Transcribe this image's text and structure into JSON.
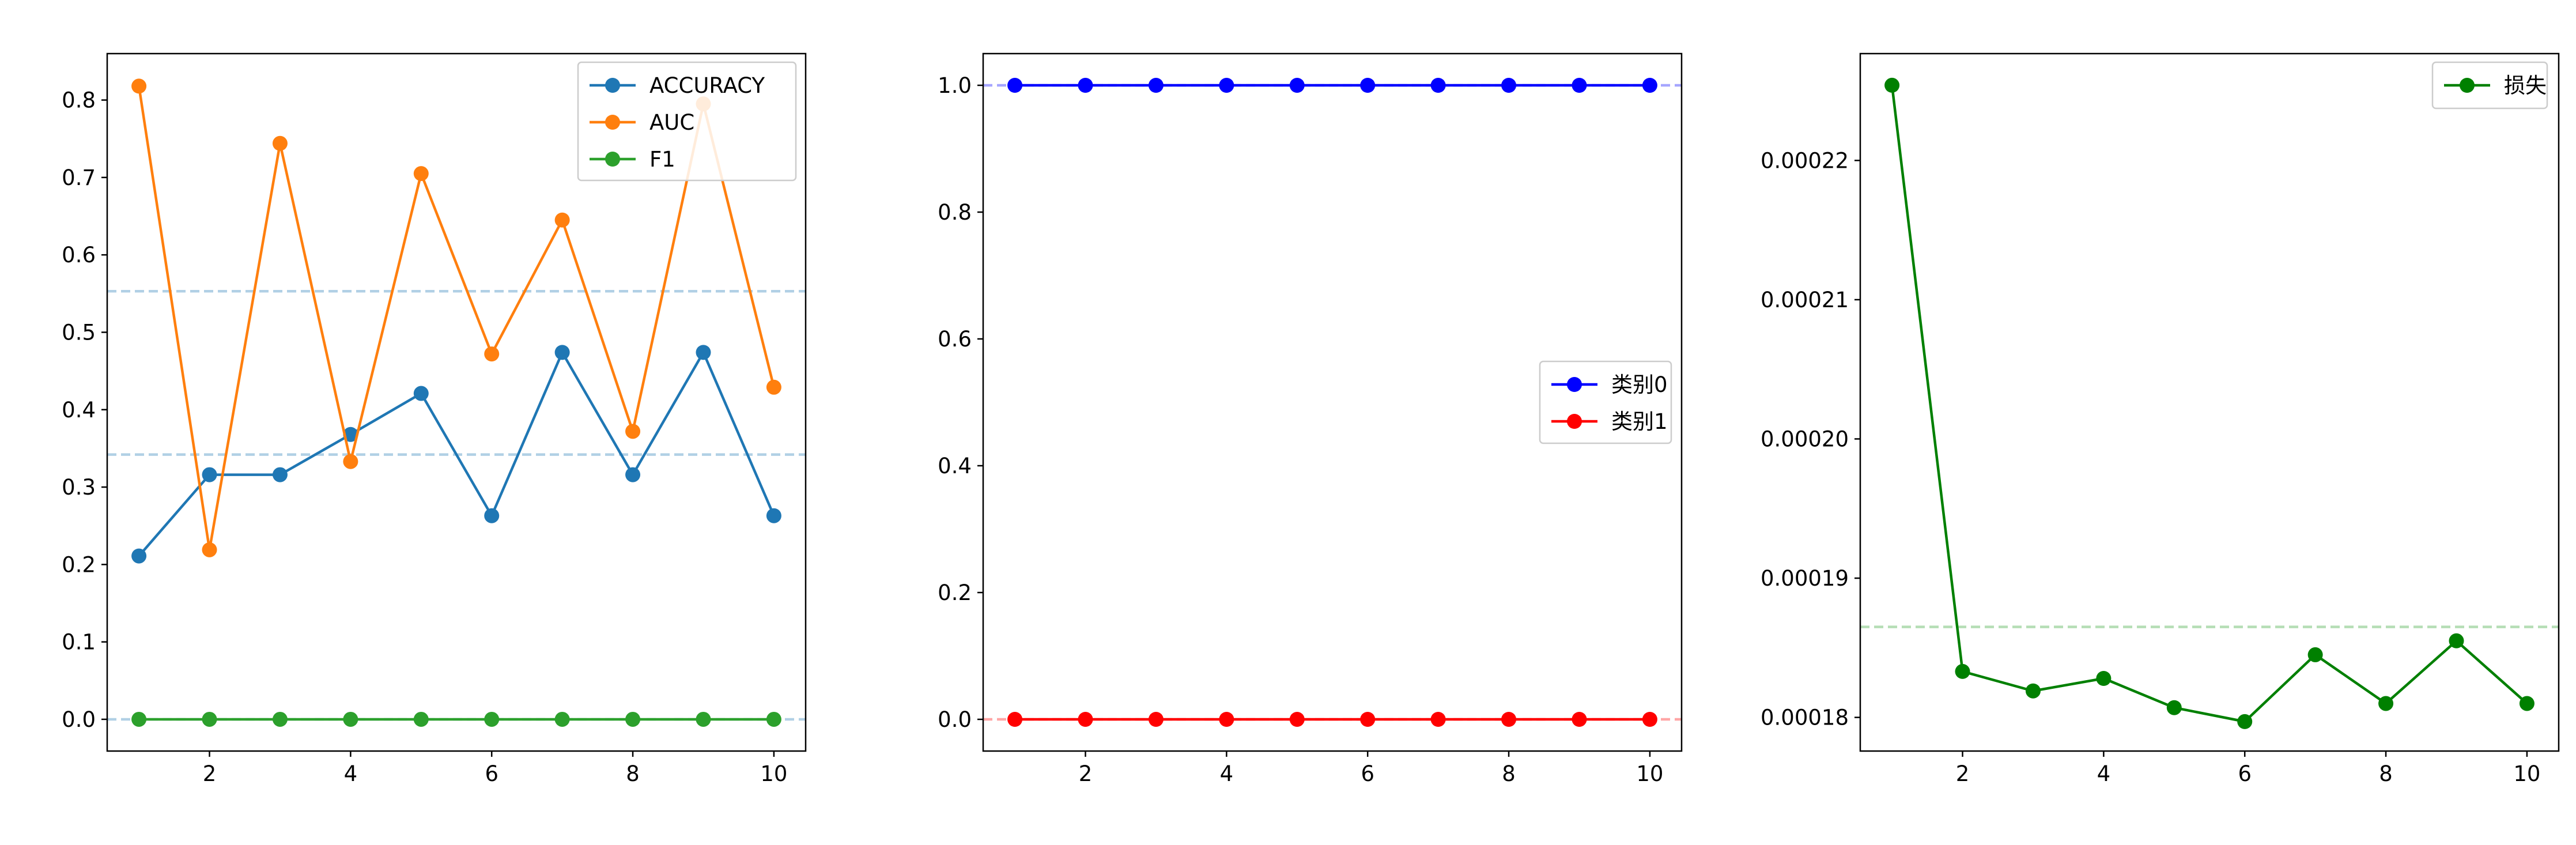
{
  "chart_data": [
    {
      "type": "line",
      "title": "",
      "xlabel": "",
      "ylabel": "",
      "x": [
        1,
        2,
        3,
        4,
        5,
        6,
        7,
        8,
        9,
        10
      ],
      "xticks": [
        2,
        4,
        6,
        8,
        10
      ],
      "xticklabels": [
        "2",
        "4",
        "6",
        "8",
        "10"
      ],
      "xlim": [
        0.55,
        10.45
      ],
      "ylim": [
        -0.041,
        0.86
      ],
      "yticks": [
        0.0,
        0.1,
        0.2,
        0.3,
        0.4,
        0.5,
        0.6,
        0.7,
        0.8
      ],
      "yticklabels": [
        "0.0",
        "0.1",
        "0.2",
        "0.3",
        "0.4",
        "0.5",
        "0.6",
        "0.7",
        "0.8"
      ],
      "grid": false,
      "legend_position": "top-right",
      "series": [
        {
          "name": "ACCURACY",
          "color": "#1f77b4",
          "values": [
            0.211,
            0.316,
            0.316,
            0.368,
            0.421,
            0.263,
            0.474,
            0.316,
            0.474,
            0.263
          ]
        },
        {
          "name": "AUC",
          "color": "#ff7f0e",
          "values": [
            0.818,
            0.219,
            0.744,
            0.333,
            0.705,
            0.472,
            0.645,
            0.372,
            0.795,
            0.429
          ]
        },
        {
          "name": "F1",
          "color": "#2ca02c",
          "values": [
            0.0,
            0.0,
            0.0,
            0.0,
            0.0,
            0.0,
            0.0,
            0.0,
            0.0,
            0.0
          ]
        }
      ],
      "reference_lines": [
        {
          "y": 0.553,
          "color": "#1f77b4"
        },
        {
          "y": 0.342,
          "color": "#1f77b4"
        },
        {
          "y": 0.0,
          "color": "#1f77b4"
        }
      ]
    },
    {
      "type": "line",
      "title": "",
      "xlabel": "",
      "ylabel": "",
      "x": [
        1,
        2,
        3,
        4,
        5,
        6,
        7,
        8,
        9,
        10
      ],
      "xticks": [
        2,
        4,
        6,
        8,
        10
      ],
      "xticklabels": [
        "2",
        "4",
        "6",
        "8",
        "10"
      ],
      "xlim": [
        0.55,
        10.45
      ],
      "ylim": [
        -0.05,
        1.05
      ],
      "yticks": [
        0.0,
        0.2,
        0.4,
        0.6,
        0.8,
        1.0
      ],
      "yticklabels": [
        "0.0",
        "0.2",
        "0.4",
        "0.6",
        "0.8",
        "1.0"
      ],
      "grid": false,
      "legend_position": "center-right",
      "series": [
        {
          "name": "类别0",
          "color": "#0000ff",
          "values": [
            1.0,
            1.0,
            1.0,
            1.0,
            1.0,
            1.0,
            1.0,
            1.0,
            1.0,
            1.0
          ]
        },
        {
          "name": "类别1",
          "color": "#ff0000",
          "values": [
            0.0,
            0.0,
            0.0,
            0.0,
            0.0,
            0.0,
            0.0,
            0.0,
            0.0,
            0.0
          ]
        }
      ],
      "reference_lines": [
        {
          "y": 1.0,
          "color": "#0000ff"
        },
        {
          "y": 0.0,
          "color": "#ff0000"
        }
      ]
    },
    {
      "type": "line",
      "title": "",
      "xlabel": "",
      "ylabel": "",
      "x": [
        1,
        2,
        3,
        4,
        5,
        6,
        7,
        8,
        9,
        10
      ],
      "xticks": [
        2,
        4,
        6,
        8,
        10
      ],
      "xticklabels": [
        "2",
        "4",
        "6",
        "8",
        "10"
      ],
      "xlim": [
        0.55,
        10.45
      ],
      "ylim": [
        0.000177584,
        0.000227673
      ],
      "yticks": [
        0.00018,
        0.00019,
        0.0002,
        0.00021,
        0.00022
      ],
      "yticklabels": [
        "0.00018",
        "0.00019",
        "0.00020",
        "0.00021",
        "0.00022"
      ],
      "grid": false,
      "legend_position": "top-right",
      "series": [
        {
          "name": "损失",
          "color": "#008000",
          "values": [
            0.0002254,
            0.0001833,
            0.0001819,
            0.0001828,
            0.0001807,
            0.0001797,
            0.0001845,
            0.000181,
            0.0001855,
            0.000181
          ]
        }
      ],
      "reference_lines": [
        {
          "y": 0.0001865,
          "color": "#2ca02c"
        }
      ]
    }
  ]
}
